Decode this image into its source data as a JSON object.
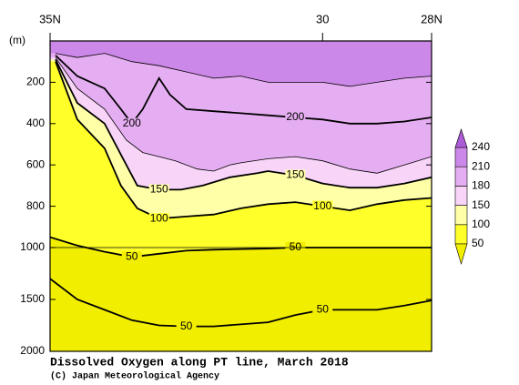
{
  "chart_data": {
    "type": "contour",
    "title": "Dissolved Oxygen along PT line, March 2018",
    "credit": "(C) Japan Meteorological Agency",
    "y_label": "(m)",
    "xlim": [
      35,
      28
    ],
    "xticks": [
      {
        "value": 35,
        "label": "35N"
      },
      {
        "value": 30,
        "label": "30"
      },
      {
        "value": 28,
        "label": "28N"
      }
    ],
    "ylim": [
      0,
      2000
    ],
    "yticks": [
      200,
      400,
      600,
      800,
      1000,
      1500,
      2000
    ],
    "levels": [
      50,
      100,
      150,
      180,
      210,
      240
    ],
    "colors": [
      "#f2ee00",
      "#ffff2a",
      "#ffffa8",
      "#f8d4f8",
      "#e6aef2",
      "#cc88e8",
      "#ac5cd6"
    ],
    "contours": [
      {
        "level": 210,
        "lat": [
          34.9,
          34.5,
          34,
          33.5,
          33,
          32.5,
          32,
          31.5,
          31,
          30.5,
          30,
          29.5,
          29,
          28.5,
          28
        ],
        "depth": [
          60,
          80,
          60,
          100,
          120,
          150,
          180,
          170,
          200,
          200,
          200,
          220,
          200,
          180,
          170
        ]
      },
      {
        "level": 200,
        "lat": [
          34.9,
          34.5,
          34,
          33.7,
          33.5,
          33.3,
          33.1,
          33,
          32.8,
          32.5,
          32,
          31.5,
          31,
          30.5,
          30,
          29.5,
          29,
          28.5,
          28
        ],
        "depth": [
          70,
          170,
          230,
          330,
          400,
          330,
          230,
          180,
          260,
          330,
          340,
          350,
          360,
          370,
          380,
          400,
          400,
          390,
          370
        ]
      },
      {
        "level": 180,
        "lat": [
          34.9,
          34.5,
          34,
          33.6,
          33.3,
          33,
          32.7,
          32.3,
          32,
          31.7,
          31.5,
          31,
          30.5,
          30,
          29.5,
          29,
          28.5,
          28
        ],
        "depth": [
          80,
          230,
          330,
          480,
          540,
          560,
          580,
          620,
          630,
          600,
          590,
          570,
          560,
          580,
          620,
          640,
          600,
          560
        ]
      },
      {
        "level": 150,
        "lat": [
          34.9,
          34.5,
          34,
          33.7,
          33.4,
          33,
          32.6,
          32.2,
          31.7,
          31.2,
          31,
          30.5,
          30,
          29.5,
          29,
          28.5,
          28
        ],
        "depth": [
          90,
          300,
          400,
          550,
          700,
          720,
          720,
          700,
          660,
          640,
          630,
          650,
          690,
          710,
          710,
          690,
          660
        ]
      },
      {
        "level": 100,
        "lat": [
          34.9,
          34.5,
          34,
          33.7,
          33.4,
          33,
          32.5,
          32,
          31.5,
          31,
          30.5,
          30,
          29.5,
          29,
          28.5,
          28
        ],
        "depth": [
          100,
          380,
          520,
          700,
          810,
          860,
          850,
          840,
          810,
          790,
          780,
          800,
          820,
          790,
          770,
          760
        ]
      },
      {
        "level": 50,
        "lat": [
          35,
          34.5,
          34,
          33.5,
          33,
          32.5,
          32,
          31,
          30.5,
          30,
          29,
          28
        ],
        "depth": [
          950,
          990,
          1040,
          1090,
          1060,
          1030,
          1020,
          1010,
          1000,
          1000,
          1000,
          1000
        ]
      },
      {
        "level": 50,
        "lat": [
          35,
          34.5,
          34,
          33.5,
          33,
          32.5,
          32,
          31,
          30.5,
          30,
          29,
          28.5,
          28
        ],
        "depth": [
          1300,
          1500,
          1600,
          1700,
          1750,
          1760,
          1760,
          1720,
          1650,
          1600,
          1600,
          1560,
          1510
        ]
      }
    ]
  }
}
